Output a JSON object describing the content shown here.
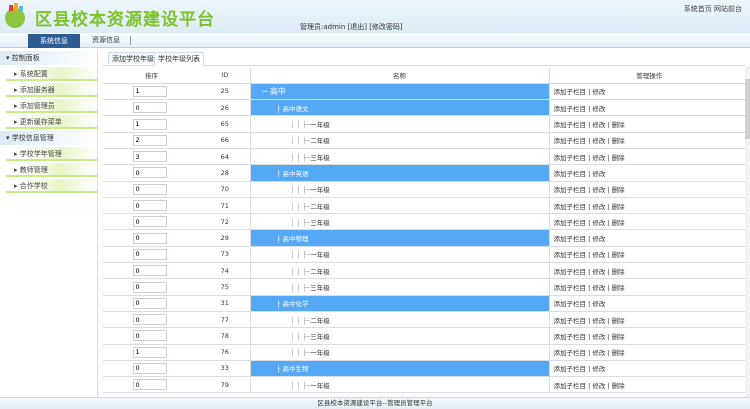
{
  "header": {
    "title": "区县校本资源建设平台",
    "top_links": "系统首页 网站前台",
    "user_info": "管理员:admin [退出] [修改密码]"
  },
  "nav": {
    "tabs": [
      "系统信息",
      "资源信息"
    ]
  },
  "sidebar": {
    "groups": [
      {
        "label": "控制面板",
        "items": [
          "系统配置",
          "添加服务器",
          "添加管理员",
          "更新缓存菜单"
        ]
      },
      {
        "label": "学校信息管理",
        "items": [
          "学校学年管理",
          "教师管理",
          "合作学校"
        ]
      }
    ]
  },
  "content_tabs": [
    "添加学校年级",
    "学校年级列表"
  ],
  "table": {
    "headers": [
      "排序",
      "ID",
      "名称",
      "管理操作"
    ],
    "rows": [
      {
        "order": "1",
        "id": "25",
        "name": "高中",
        "level": 0,
        "ops": "添加子栏目 | 修改"
      },
      {
        "order": "0",
        "id": "26",
        "name": "高中语文",
        "level": 1,
        "ops": "添加子栏目 | 修改"
      },
      {
        "order": "1",
        "id": "65",
        "name": "一年级",
        "level": 2,
        "ops": "添加子栏目 | 修改 | 删除"
      },
      {
        "order": "2",
        "id": "66",
        "name": "二年级",
        "level": 2,
        "ops": "添加子栏目 | 修改 | 删除"
      },
      {
        "order": "3",
        "id": "64",
        "name": "三年级",
        "level": 2,
        "ops": "添加子栏目 | 修改 | 删除"
      },
      {
        "order": "0",
        "id": "28",
        "name": "高中英语",
        "level": 1,
        "ops": "添加子栏目 | 修改"
      },
      {
        "order": "0",
        "id": "70",
        "name": "一年级",
        "level": 2,
        "ops": "添加子栏目 | 修改 | 删除"
      },
      {
        "order": "0",
        "id": "71",
        "name": "二年级",
        "level": 2,
        "ops": "添加子栏目 | 修改 | 删除"
      },
      {
        "order": "0",
        "id": "72",
        "name": "三年级",
        "level": 2,
        "ops": "添加子栏目 | 修改 | 删除"
      },
      {
        "order": "0",
        "id": "29",
        "name": "高中物理",
        "level": 1,
        "ops": "添加子栏目 | 修改"
      },
      {
        "order": "0",
        "id": "73",
        "name": "一年级",
        "level": 2,
        "ops": "添加子栏目 | 修改 | 删除"
      },
      {
        "order": "0",
        "id": "74",
        "name": "二年级",
        "level": 2,
        "ops": "添加子栏目 | 修改 | 删除"
      },
      {
        "order": "0",
        "id": "75",
        "name": "三年级",
        "level": 2,
        "ops": "添加子栏目 | 修改 | 删除"
      },
      {
        "order": "0",
        "id": "31",
        "name": "高中化学",
        "level": 1,
        "ops": "添加子栏目 | 修改"
      },
      {
        "order": "0",
        "id": "77",
        "name": "二年级",
        "level": 2,
        "ops": "添加子栏目 | 修改 | 删除"
      },
      {
        "order": "0",
        "id": "78",
        "name": "三年级",
        "level": 2,
        "ops": "添加子栏目 | 修改 | 删除"
      },
      {
        "order": "1",
        "id": "76",
        "name": "一年级",
        "level": 2,
        "ops": "添加子栏目 | 修改 | 删除"
      },
      {
        "order": "0",
        "id": "33",
        "name": "高中生物",
        "level": 1,
        "ops": "添加子栏目 | 修改"
      },
      {
        "order": "0",
        "id": "79",
        "name": "一年级",
        "level": 2,
        "ops": "添加子栏目 | 修改 | 删除"
      }
    ]
  },
  "footer": "区县校本资源建设平台--管理员管理平台",
  "colors": {
    "highlight": "#55a8f5",
    "nav_active": "#2d5b94",
    "title_green": "#7cc22a"
  }
}
